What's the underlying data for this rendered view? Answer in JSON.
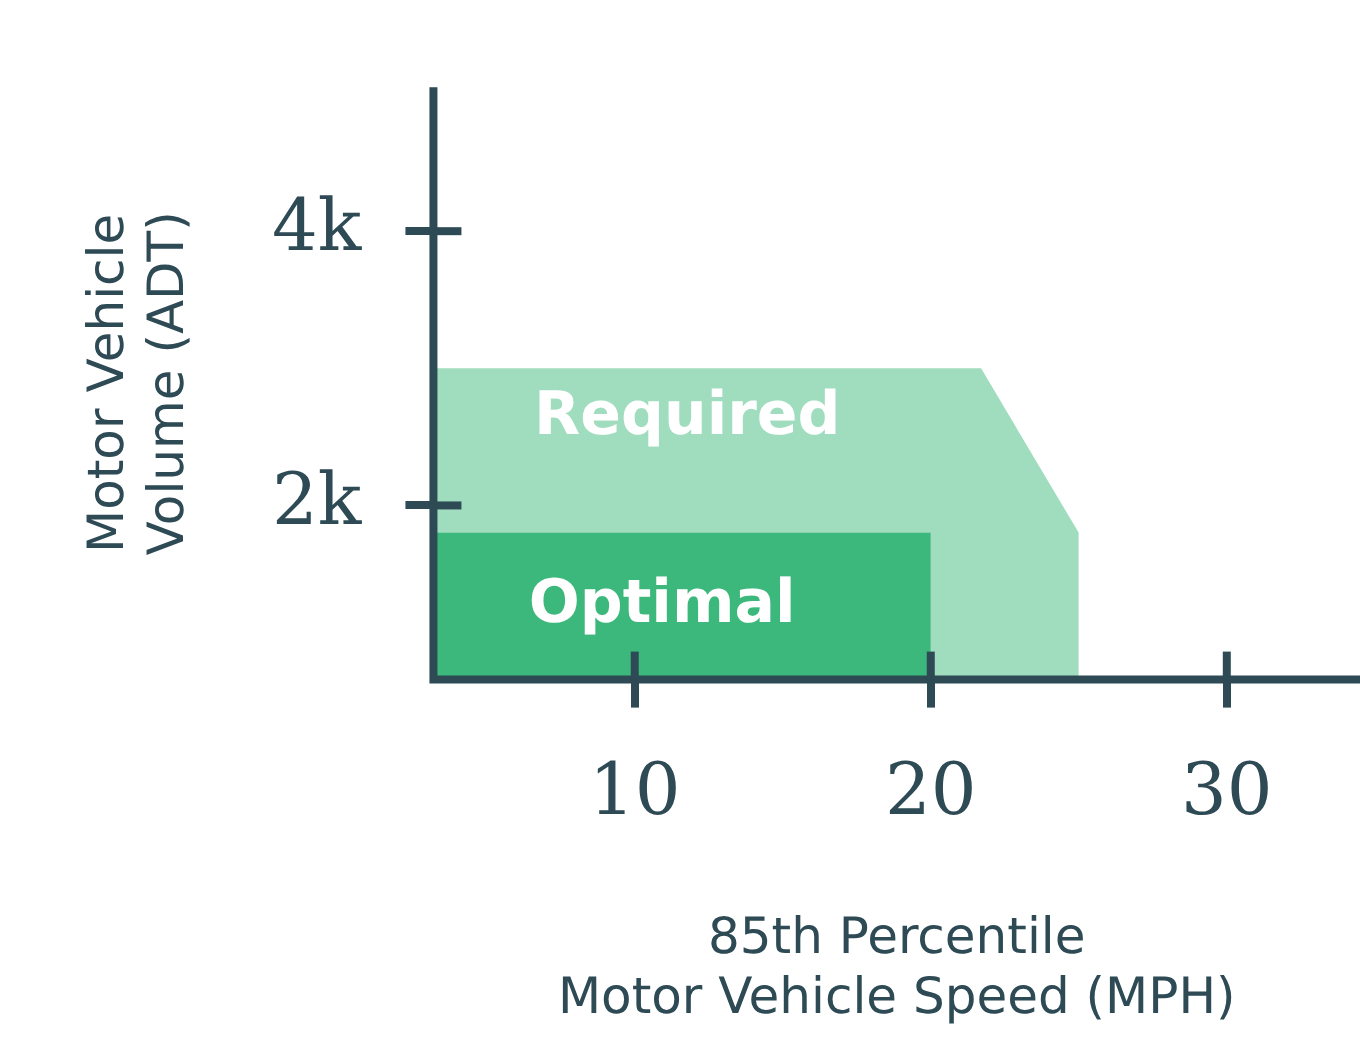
{
  "chart_data": {
    "type": "area",
    "xlabel": "85th Percentile\nMotor Vehicle Speed (MPH)",
    "ylabel": "Motor Vehicle\nVolume (ADT)",
    "xlim": [
      3.2,
      34.5
    ],
    "xticks": [
      10,
      20,
      30
    ],
    "ylim": [
      730,
      5050
    ],
    "yticks": [
      {
        "value": 2000,
        "label": "2k"
      },
      {
        "value": 4000,
        "label": "4k"
      }
    ],
    "series": [
      {
        "name": "Required",
        "color": "#a0dcbe",
        "x": [
          3.2,
          21.7,
          25
        ],
        "values": [
          3000,
          3000,
          1800
        ]
      },
      {
        "name": "Optimal",
        "color": "#3db87c",
        "x": [
          3.2,
          20
        ],
        "values": [
          1800,
          1800
        ]
      }
    ],
    "grid": false,
    "legend": false
  }
}
